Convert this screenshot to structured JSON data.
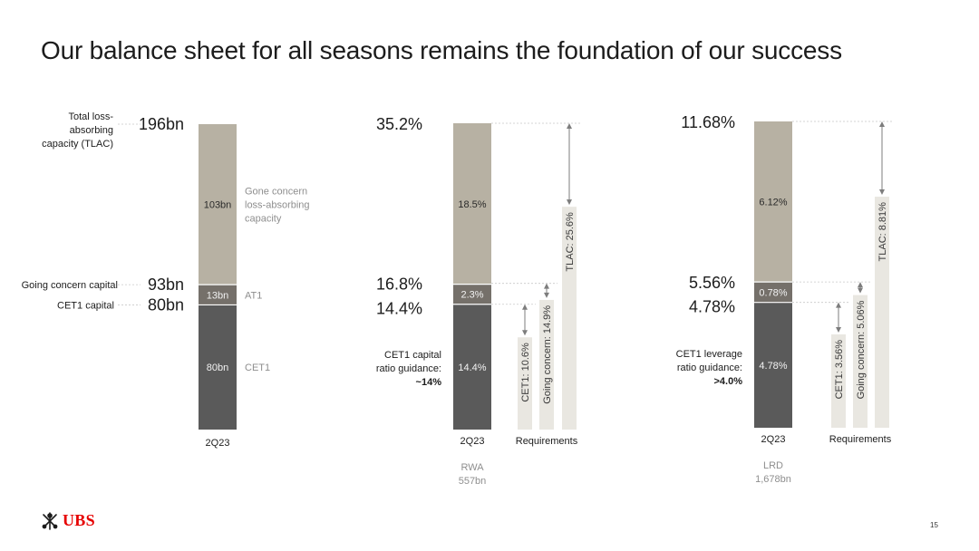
{
  "title": "Our balance sheet for all seasons remains the foundation of our success",
  "page_number": "15",
  "logo_text": "UBS",
  "colors": {
    "cet1": "#5a5a5a",
    "at1": "#75706a",
    "gone": "#b7b1a3",
    "requirement": "#e9e7e1",
    "text_dark": "#1c1c1c",
    "text_grey": "#8e8e8e",
    "text_white": "#f2f2f2",
    "brand_red": "#e60000"
  },
  "chart_data": [
    {
      "type": "bar",
      "id": "absolute",
      "categories": [
        "2Q23"
      ],
      "unit": "bn",
      "stack": [
        {
          "name": "CET1",
          "value": 80,
          "label": "80bn"
        },
        {
          "name": "AT1",
          "value": 13,
          "label": "13bn"
        },
        {
          "name": "Gone concern loss-absorbing capacity",
          "value": 103,
          "label": "103bn"
        }
      ],
      "levels": [
        {
          "name": "Total loss-absorbing capacity (TLAC)",
          "value": 196,
          "label": "196bn",
          "left_label": [
            "Total loss-",
            "absorbing",
            "capacity (TLAC)"
          ]
        },
        {
          "name": "Going concern capital",
          "value": 93,
          "label": "93bn",
          "left_label": [
            "Going concern capital"
          ]
        },
        {
          "name": "CET1 capital",
          "value": 80,
          "label": "80bn",
          "left_label": [
            "CET1 capital"
          ]
        }
      ],
      "segment_legend": [
        {
          "segment": "Gone concern loss-absorbing capacity",
          "lines": [
            "Gone concern",
            "loss-absorbing",
            "capacity"
          ]
        },
        {
          "segment": "AT1",
          "lines": [
            "AT1"
          ]
        },
        {
          "segment": "CET1",
          "lines": [
            "CET1"
          ]
        }
      ]
    },
    {
      "type": "bar",
      "id": "rwa",
      "categories": [
        "2Q23",
        "Requirements"
      ],
      "unit": "%",
      "stack": [
        {
          "name": "CET1",
          "value": 14.4,
          "label": "14.4%"
        },
        {
          "name": "AT1",
          "value": 2.3,
          "label": "2.3%"
        },
        {
          "name": "Gone concern",
          "value": 18.5,
          "label": "18.5%"
        }
      ],
      "levels": [
        {
          "value": 35.2,
          "label": "35.2%"
        },
        {
          "value": 16.8,
          "label": "16.8%"
        },
        {
          "value": 14.4,
          "label": "14.4%"
        }
      ],
      "requirements": [
        {
          "name": "CET1",
          "value": 10.6,
          "label": "CET1: 10.6%"
        },
        {
          "name": "Going concern",
          "value": 14.9,
          "label": "Going concern: 14.9%"
        },
        {
          "name": "TLAC",
          "value": 25.6,
          "label": "TLAC: 25.6%"
        }
      ],
      "guidance": {
        "lines": [
          "CET1 capital",
          "ratio guidance:"
        ],
        "value": "~14%"
      },
      "denominator": {
        "name": "RWA",
        "value": "557bn"
      }
    },
    {
      "type": "bar",
      "id": "lrd",
      "categories": [
        "2Q23",
        "Requirements"
      ],
      "unit": "%",
      "stack": [
        {
          "name": "CET1",
          "value": 4.78,
          "label": "4.78%"
        },
        {
          "name": "AT1",
          "value": 0.78,
          "label": "0.78%"
        },
        {
          "name": "Gone concern",
          "value": 6.12,
          "label": "6.12%"
        }
      ],
      "levels": [
        {
          "value": 11.68,
          "label": "11.68%"
        },
        {
          "value": 5.56,
          "label": "5.56%"
        },
        {
          "value": 4.78,
          "label": "4.78%"
        }
      ],
      "requirements": [
        {
          "name": "CET1",
          "value": 3.56,
          "label": "CET1: 3.56%"
        },
        {
          "name": "Going concern",
          "value": 5.06,
          "label": "Going concern: 5.06%"
        },
        {
          "name": "TLAC",
          "value": 8.81,
          "label": "TLAC: 8.81%"
        }
      ],
      "guidance": {
        "lines": [
          "CET1 leverage",
          "ratio guidance:"
        ],
        "value": ">4.0%"
      },
      "denominator": {
        "name": "LRD",
        "value": "1,678bn"
      }
    }
  ]
}
